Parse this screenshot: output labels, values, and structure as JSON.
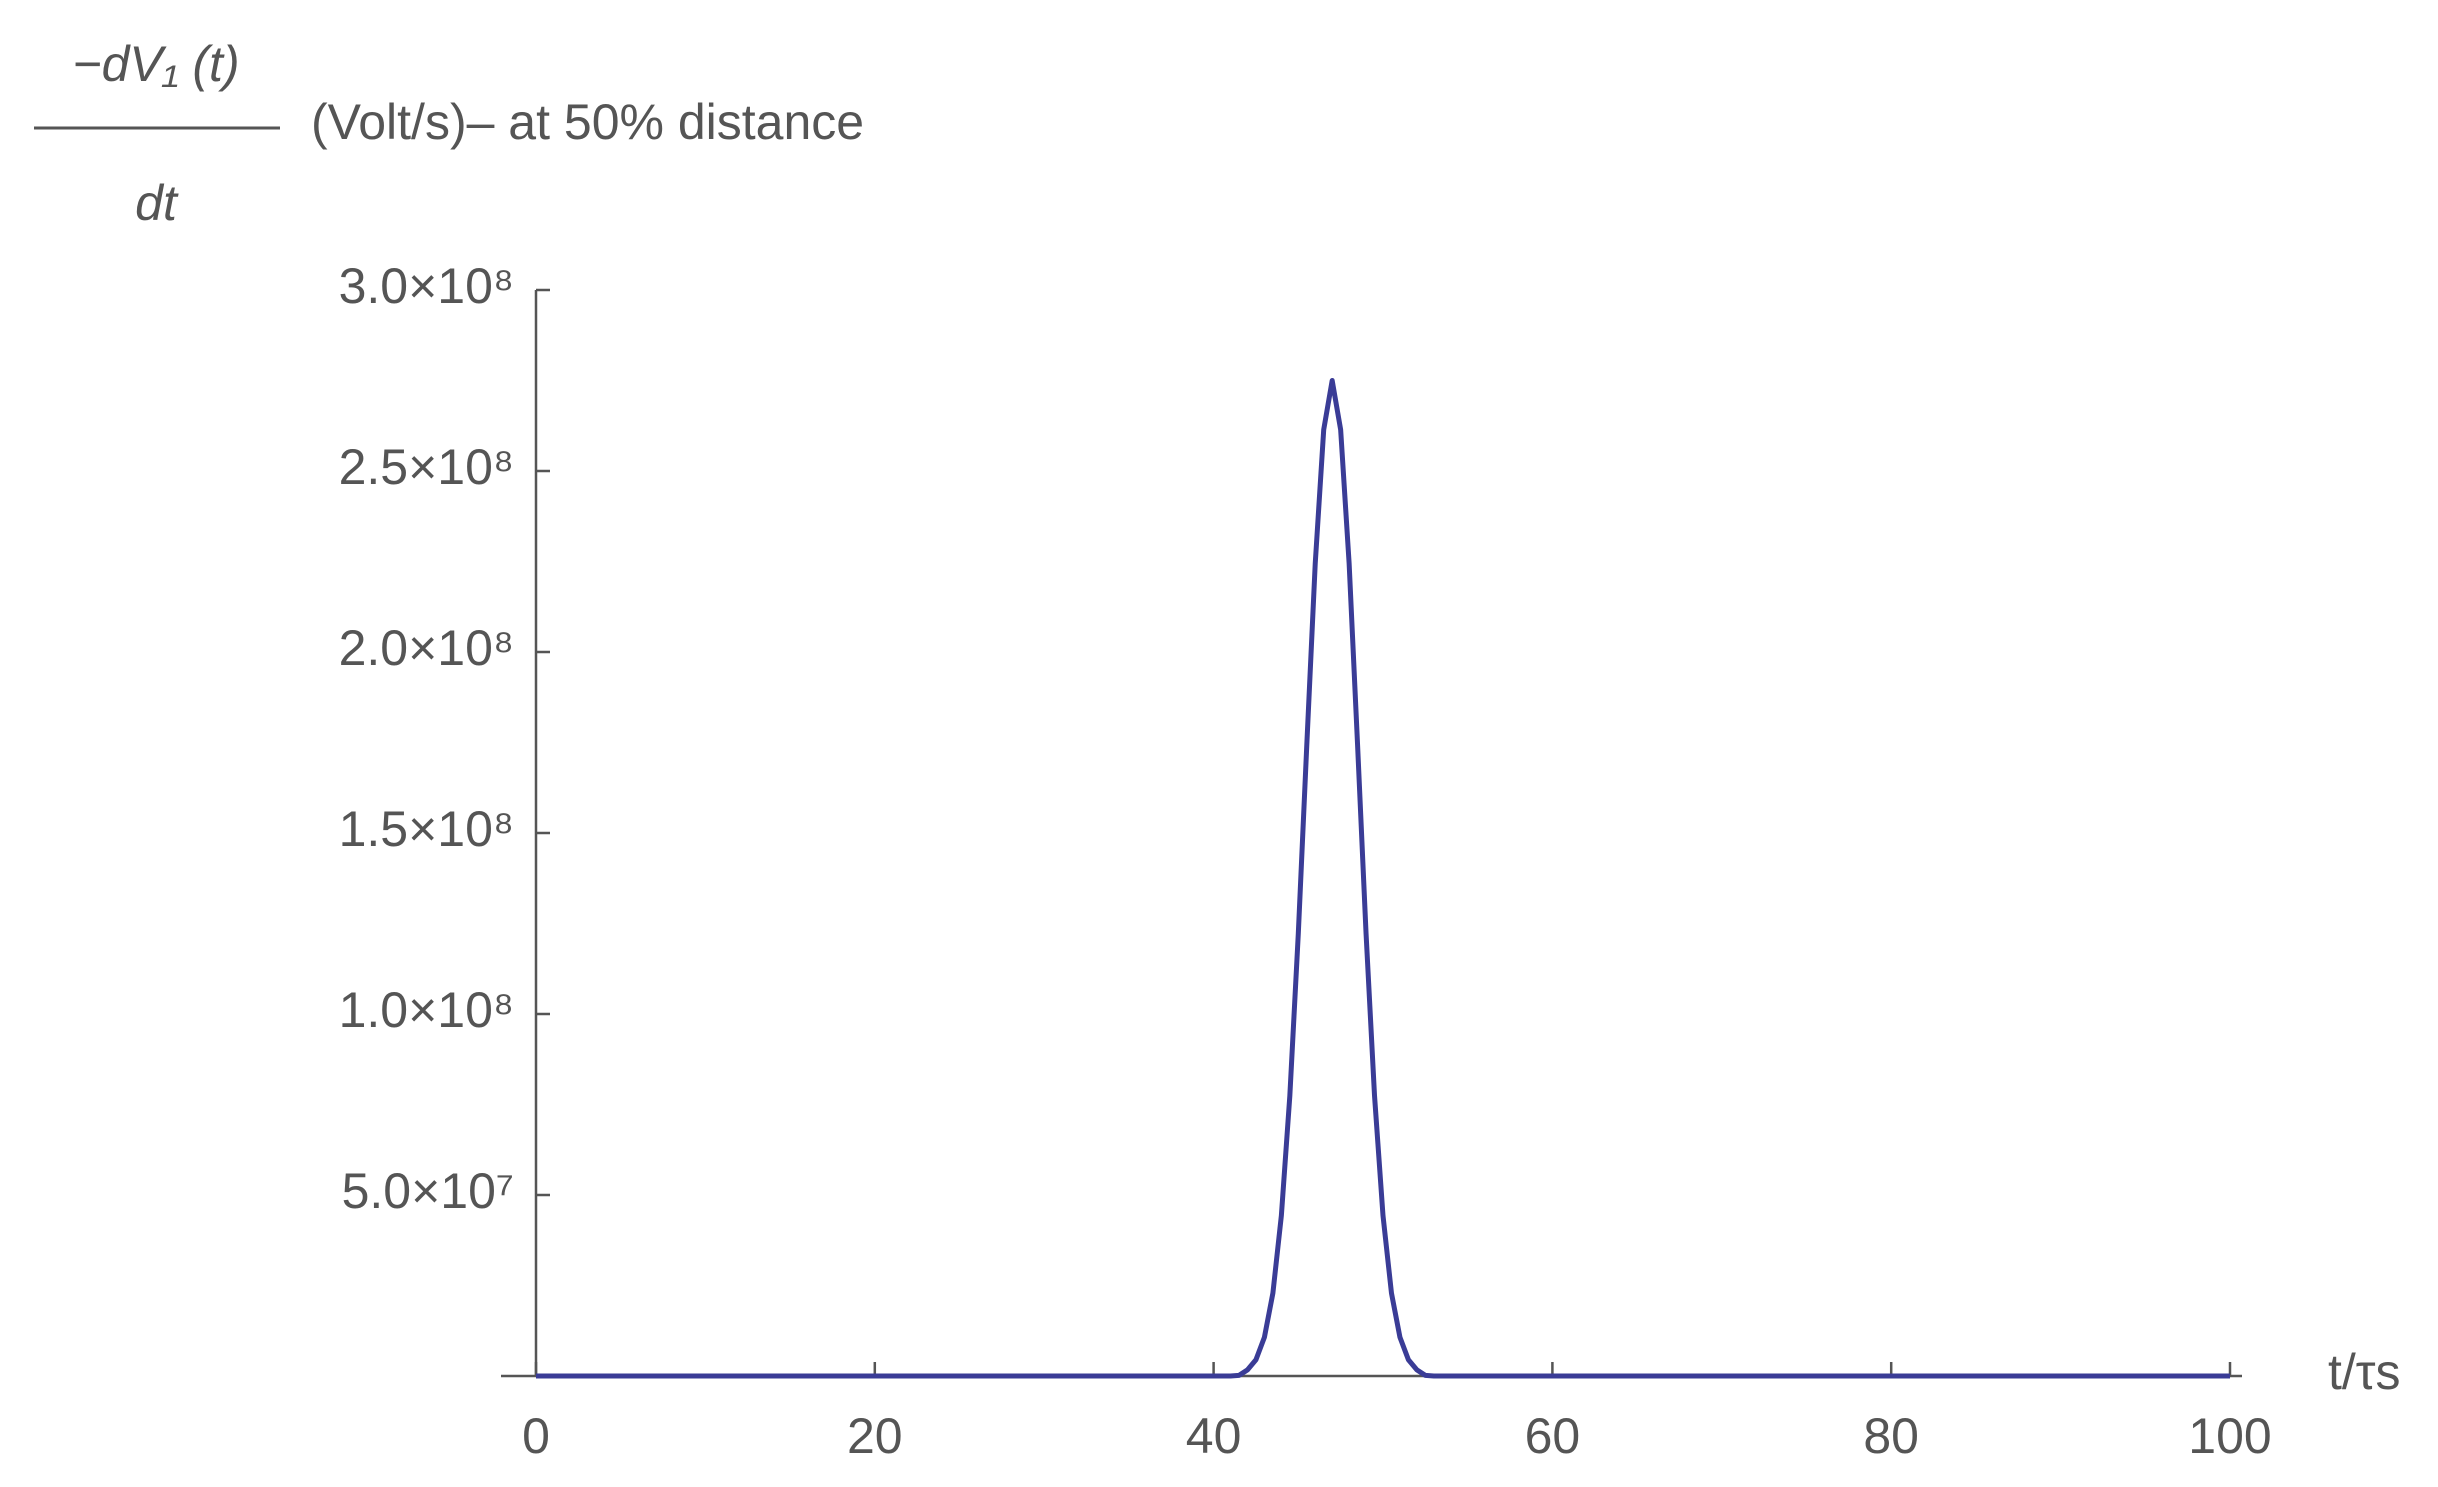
{
  "chart_data": {
    "type": "line",
    "ylabel": {
      "numerator": "−dV₁ (t)",
      "denominator": "dt",
      "text": "(Volt/s)– at 50% distance"
    },
    "xlabel": "t/τs",
    "series": [
      {
        "color": "#3a3c96",
        "x": [
          0,
          41,
          41.5,
          42,
          42.5,
          43,
          43.5,
          44,
          44.5,
          45,
          45.5,
          46,
          46.5,
          47,
          47.5,
          48,
          48.5,
          49,
          49.5,
          50,
          50.5,
          51,
          51.5,
          52,
          52.5,
          53,
          53.5,
          54,
          54.5,
          55,
          100
        ],
        "values": [
          0,
          0,
          180000,
          1700000,
          4500000,
          10700000,
          22900000,
          44300000,
          77400000,
          122200000,
          174200000,
          224500000,
          261400000,
          275000000,
          261400000,
          224500000,
          174200000,
          122200000,
          77400000,
          44300000,
          22900000,
          10700000,
          4500000,
          1700000,
          180000,
          0,
          0,
          0,
          0,
          0,
          0
        ]
      }
    ],
    "xlim": [
      0,
      100
    ],
    "xticks": [
      0,
      20,
      40,
      60,
      80,
      100
    ],
    "ylim": [
      0,
      300000000
    ],
    "yticks": [
      {
        "value": 50000000,
        "label": "5.0×10⁷"
      },
      {
        "value": 100000000,
        "label": "1.0×10⁸"
      },
      {
        "value": 150000000,
        "label": "1.5×10⁸"
      },
      {
        "value": 200000000,
        "label": "2.0×10⁸"
      },
      {
        "value": 250000000,
        "label": "2.5×10⁸"
      },
      {
        "value": 300000000,
        "label": "3.0×10⁸"
      }
    ],
    "grid": false
  }
}
